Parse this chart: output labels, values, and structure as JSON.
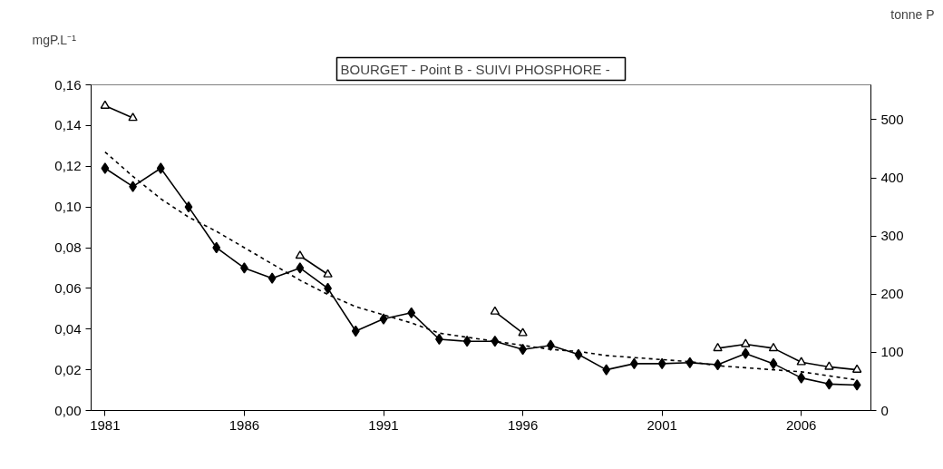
{
  "chart_data": {
    "type": "line",
    "title": "BOURGET - Point B -  SUIVI   PHOSPHORE -",
    "ylabel": "mgP.L⁻¹",
    "y2label": "tonne P",
    "x": [
      1981,
      1982,
      1983,
      1984,
      1985,
      1986,
      1987,
      1988,
      1989,
      1990,
      1991,
      1992,
      1993,
      1994,
      1995,
      1996,
      1997,
      1998,
      1999,
      2000,
      2001,
      2002,
      2003,
      2004,
      2005,
      2006,
      2007,
      2008
    ],
    "xlim": [
      1980.5,
      2008.5
    ],
    "xticks": [
      1981,
      1986,
      1991,
      1996,
      2001,
      2006
    ],
    "ylim": [
      0,
      0.16
    ],
    "yticks": [
      {
        "value": 0,
        "label": "0,00"
      },
      {
        "value": 0.02,
        "label": "0,02"
      },
      {
        "value": 0.04,
        "label": "0,04"
      },
      {
        "value": 0.06,
        "label": "0,06"
      },
      {
        "value": 0.08,
        "label": "0,08"
      },
      {
        "value": 0.1,
        "label": "0,10"
      },
      {
        "value": 0.12,
        "label": "0,12"
      },
      {
        "value": 0.14,
        "label": "0,14"
      },
      {
        "value": 0.16,
        "label": "0,16"
      }
    ],
    "y2lim": [
      0,
      560
    ],
    "y2ticks": [
      0,
      100,
      200,
      300,
      400,
      500
    ],
    "grid": false,
    "series": [
      {
        "color": "#000000",
        "marker": "diamond",
        "line_style": "solid",
        "values": [
          0.119,
          0.11,
          0.119,
          0.1,
          0.08,
          0.07,
          0.065,
          0.07,
          0.06,
          0.039,
          0.045,
          0.048,
          0.035,
          0.034,
          0.034,
          0.03,
          0.032,
          0.0275,
          0.02,
          0.023,
          0.023,
          0.0235,
          0.0225,
          0.028,
          0.023,
          0.016,
          0.013,
          0.0125
        ]
      },
      {
        "color": "#000000",
        "marker": "triangle",
        "line_style": "solid",
        "axis": "y2",
        "values": [
          524,
          503,
          null,
          null,
          null,
          null,
          null,
          266,
          234,
          null,
          null,
          null,
          null,
          null,
          170,
          133,
          null,
          null,
          null,
          null,
          null,
          null,
          107,
          114,
          107,
          83,
          75,
          70
        ]
      },
      {
        "color": "#000000",
        "marker": "none",
        "line_style": "dashed",
        "values": [
          0.127,
          0.115,
          0.104,
          0.095,
          0.088,
          0.08,
          0.072,
          0.064,
          0.057,
          0.051,
          0.047,
          0.043,
          0.038,
          0.036,
          0.034,
          0.032,
          0.03,
          0.029,
          0.027,
          0.026,
          0.025,
          0.024,
          0.022,
          0.021,
          0.02,
          0.019,
          0.017,
          0.015
        ]
      }
    ]
  }
}
